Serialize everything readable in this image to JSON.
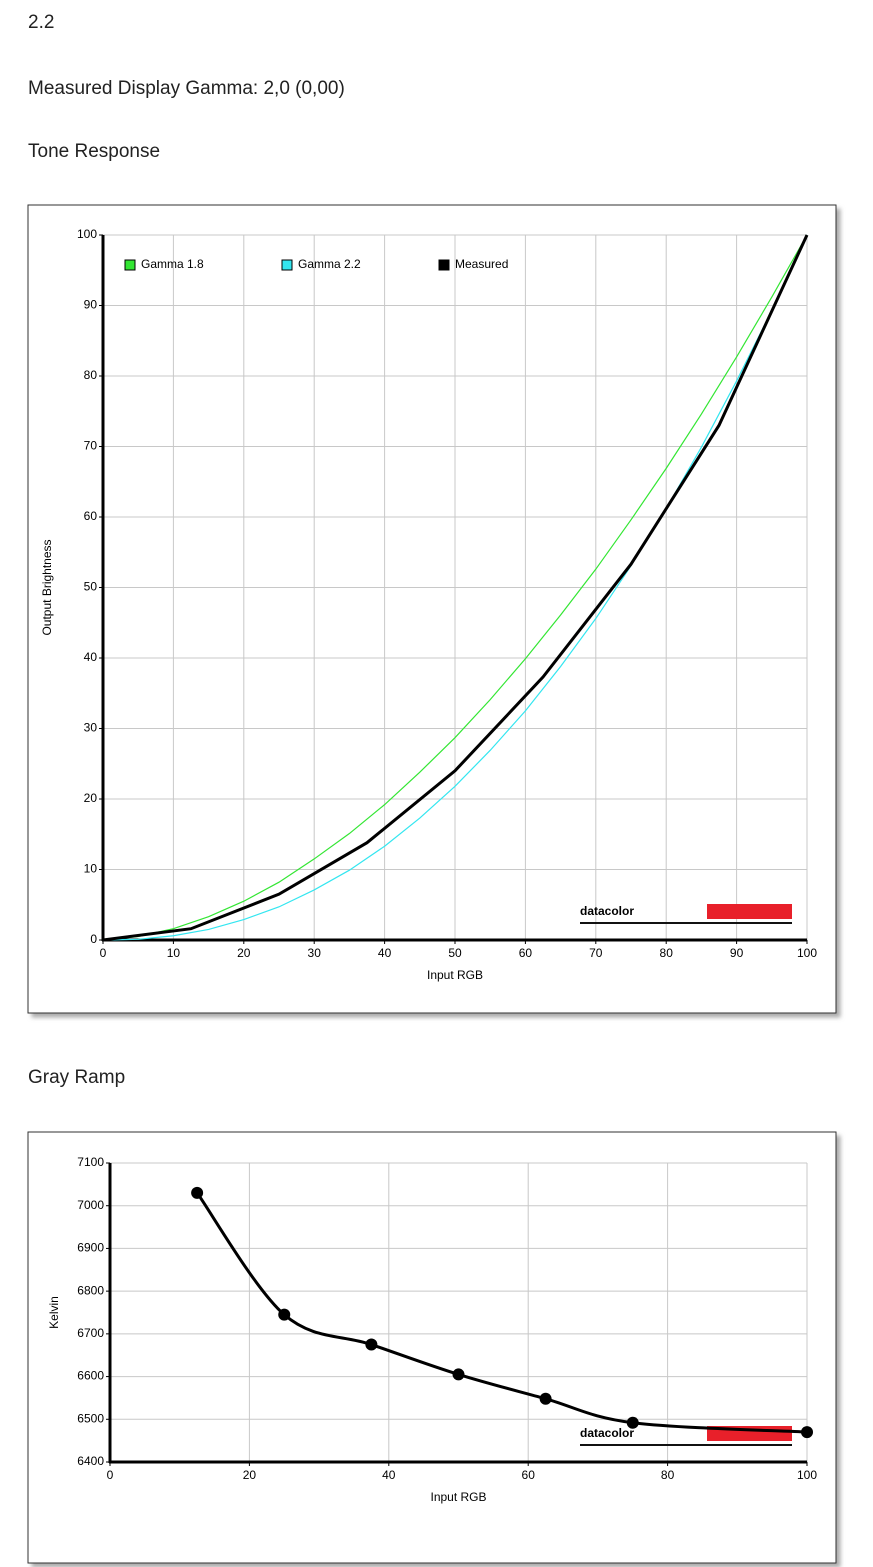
{
  "header_lines": [
    "2.2",
    "Measured Display Gamma: 2,0 (0,00)"
  ],
  "chart_data": [
    {
      "type": "line",
      "title": "Tone Response",
      "xlabel": "Input RGB",
      "ylabel": "Output Brightness",
      "watermark": "datacolor",
      "xlim": [
        0,
        100
      ],
      "xticks": [
        0,
        10,
        20,
        30,
        40,
        50,
        60,
        70,
        80,
        90,
        100
      ],
      "ylim": [
        0,
        100
      ],
      "yticks": [
        0,
        10,
        20,
        30,
        40,
        50,
        60,
        70,
        80,
        90,
        100
      ],
      "grid": true,
      "legend": "top",
      "series": [
        {
          "name": "Gamma 1.8",
          "color": "#33e633",
          "width": 1.2,
          "markers": false,
          "x": [
            0,
            5,
            10,
            15,
            20,
            25,
            30,
            35,
            40,
            45,
            50,
            55,
            60,
            65,
            70,
            75,
            80,
            85,
            90,
            95,
            100
          ],
          "values": [
            0,
            0.5,
            1.6,
            3.3,
            5.5,
            8.2,
            11.5,
            15.1,
            19.2,
            23.8,
            28.7,
            34.1,
            39.9,
            46.1,
            52.6,
            59.6,
            66.9,
            74.6,
            82.7,
            91.2,
            100
          ]
        },
        {
          "name": "Gamma 2.2",
          "color": "#33e6f0",
          "width": 1.2,
          "markers": false,
          "x": [
            0,
            5,
            10,
            15,
            20,
            25,
            30,
            35,
            40,
            45,
            50,
            55,
            60,
            65,
            70,
            75,
            80,
            85,
            90,
            95,
            100
          ],
          "values": [
            0,
            0.1,
            0.6,
            1.5,
            2.9,
            4.7,
            7.1,
            9.9,
            13.3,
            17.3,
            21.8,
            26.9,
            32.5,
            38.8,
            45.6,
            53.1,
            61.2,
            69.9,
            79.3,
            89.3,
            100
          ]
        },
        {
          "name": "Measured",
          "color": "#000000",
          "width": 3,
          "markers": false,
          "x": [
            0,
            12.5,
            25,
            37.5,
            50,
            62.5,
            75,
            87.5,
            100
          ],
          "values": [
            0,
            1.6,
            6.5,
            13.8,
            24,
            37.3,
            53.3,
            73,
            100
          ]
        }
      ]
    },
    {
      "type": "line",
      "title": "Gray Ramp",
      "xlabel": "Input RGB",
      "ylabel": "Kelvin",
      "watermark": "datacolor",
      "xlim": [
        0,
        100
      ],
      "xticks": [
        0,
        20,
        40,
        60,
        80,
        100
      ],
      "ylim": [
        6400,
        7100
      ],
      "yticks": [
        6400,
        6500,
        6600,
        6700,
        6800,
        6900,
        7000,
        7100
      ],
      "grid": true,
      "series": [
        {
          "color": "#000000",
          "width": 3,
          "markers": true,
          "x": [
            12.5,
            25,
            37.5,
            50,
            62.5,
            75,
            100
          ],
          "values": [
            7030,
            6745,
            6675,
            6605,
            6548,
            6492,
            6470
          ]
        }
      ]
    }
  ]
}
